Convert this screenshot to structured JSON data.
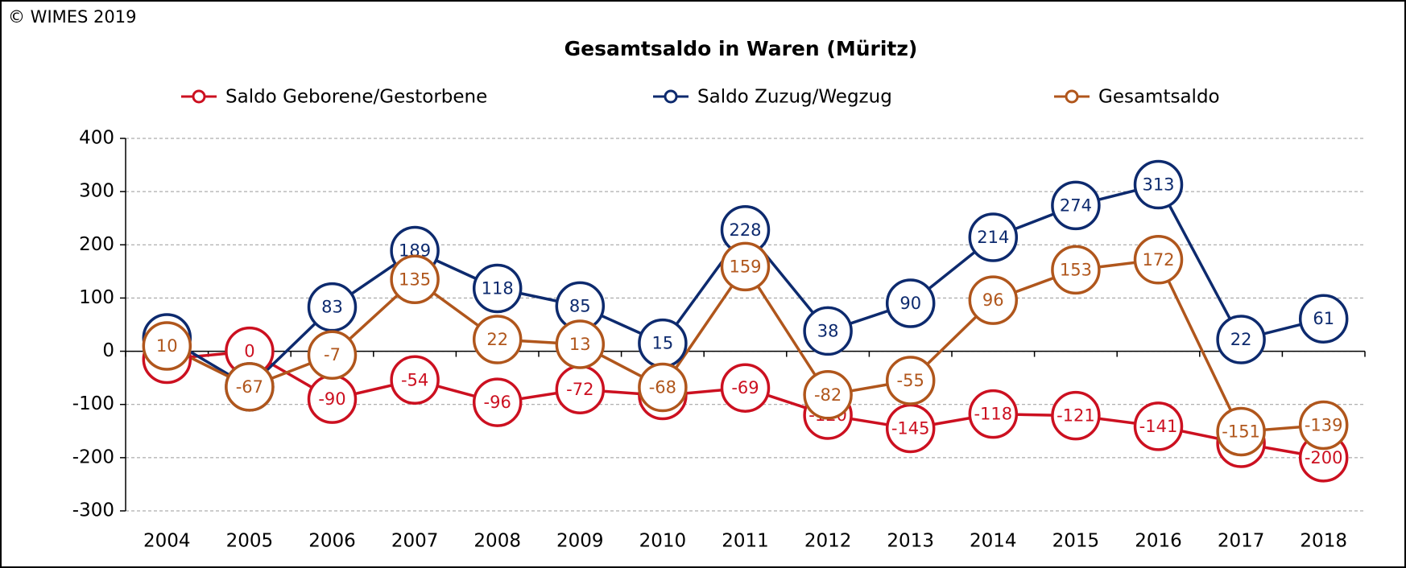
{
  "credit": "© WIMES 2019",
  "chart_data": {
    "type": "line",
    "title": "Gesamtsaldo in Waren (Müritz)",
    "categories": [
      "2004",
      "2005",
      "2006",
      "2007",
      "2008",
      "2009",
      "2010",
      "2011",
      "2012",
      "2013",
      "2014",
      "2015",
      "2016",
      "2017",
      "2018"
    ],
    "series": [
      {
        "name": "Saldo Geborene/Gestorbene",
        "color": "#cc1020",
        "values": [
          -15,
          0,
          -90,
          -54,
          -96,
          -72,
          -83,
          -69,
          -120,
          -145,
          -118,
          -121,
          -141,
          -173,
          -200
        ]
      },
      {
        "name": "Saldo Zuzug/Wegzug",
        "color": "#0d2a6e",
        "values": [
          25,
          -67,
          83,
          189,
          118,
          85,
          15,
          228,
          38,
          90,
          214,
          274,
          313,
          22,
          61
        ]
      },
      {
        "name": "Gesamtsaldo",
        "color": "#b0561c",
        "values": [
          10,
          -67,
          -7,
          135,
          22,
          13,
          -68,
          159,
          -82,
          -55,
          96,
          153,
          172,
          -151,
          -139
        ]
      }
    ],
    "ylim": [
      -300,
      400
    ],
    "yticks": [
      -300,
      -200,
      -100,
      0,
      100,
      200,
      300,
      400
    ],
    "grid": true,
    "legend": "top"
  }
}
